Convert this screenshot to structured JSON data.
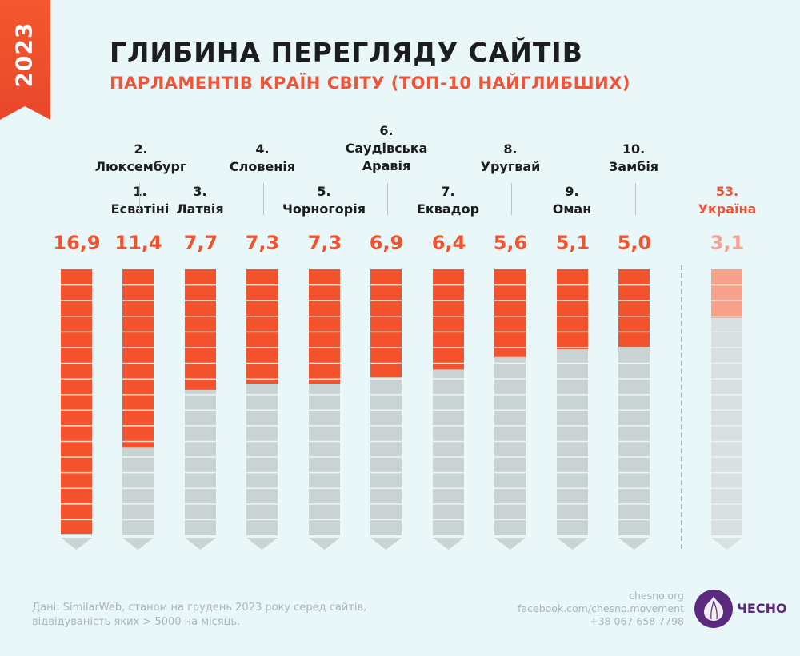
{
  "ribbon": {
    "year": "2023"
  },
  "header": {
    "title": "ГЛИБИНА ПЕРЕГЛЯДУ САЙТІВ",
    "subtitle": "ПАРЛАМЕНТІВ КРАЇН СВІТУ (ТОП-10 НАЙГЛИБШИХ)"
  },
  "colors": {
    "accent": "#f3522d",
    "accent_faded": "#f7a08a",
    "empty": "#cad3d3",
    "empty_faded": "#d9e0e0",
    "background": "#eaf7f8",
    "logo": "#5b2a7f"
  },
  "chart_data": {
    "type": "bar",
    "title": "ГЛИБИНА ПЕРЕГЛЯДУ САЙТІВ ПАРЛАМЕНТІВ КРАЇН СВІТУ (ТОП-10 НАЙГЛИБШИХ)",
    "xlabel": "",
    "ylabel": "",
    "ylim": [
      0,
      17
    ],
    "categories": [
      "Есватіні",
      "Люксембург",
      "Латвія",
      "Словенія",
      "Чорногорія",
      "Саудівська Аравія",
      "Еквадор",
      "Уругвай",
      "Оман",
      "Замбія",
      "Україна"
    ],
    "ranks": [
      "1.",
      "2.",
      "3.",
      "4.",
      "5.",
      "6.",
      "7.",
      "8.",
      "9.",
      "10.",
      "53."
    ],
    "values": [
      16.9,
      11.4,
      7.7,
      7.3,
      7.3,
      6.9,
      6.4,
      5.6,
      5.1,
      5.0,
      3.1
    ],
    "value_labels": [
      "16,9",
      "11,4",
      "7,7",
      "7,3",
      "7,3",
      "6,9",
      "6,4",
      "5,6",
      "5,1",
      "5,0",
      "3,1"
    ],
    "highlighted": [
      "Україна"
    ]
  },
  "labels": [
    {
      "rank": "1.",
      "name": "Есватіні"
    },
    {
      "rank": "2.",
      "name": "Люксембург"
    },
    {
      "rank": "3.",
      "name": "Латвія"
    },
    {
      "rank": "4.",
      "name": "Словенія"
    },
    {
      "rank": "5.",
      "name": "Чорногорія"
    },
    {
      "rank": "6.",
      "name": "Саудівська",
      "name2": "Аравія"
    },
    {
      "rank": "7.",
      "name": "Еквадор"
    },
    {
      "rank": "8.",
      "name": "Уругвай"
    },
    {
      "rank": "9.",
      "name": "Оман"
    },
    {
      "rank": "10.",
      "name": "Замбія"
    },
    {
      "rank": "53.",
      "name": "Україна"
    }
  ],
  "footer": {
    "note_line1": "Дані: SimilarWeb, станом на грудень 2023 року серед сайтів,",
    "note_line2": "відвідуваність яких > 5000 на місяць.",
    "contact_site": "chesno.org",
    "contact_facebook": "facebook.com/chesno.movement",
    "contact_phone": "+38 067 658 7798",
    "logo_text": "ЧЕСНО",
    "logo_icon": "garlic-icon"
  }
}
